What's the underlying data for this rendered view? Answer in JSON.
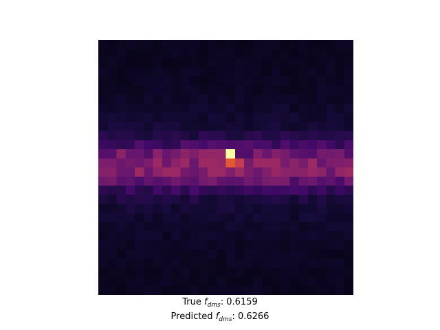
{
  "caption": {
    "true_prefix": "True ",
    "true_var": "f",
    "true_sub": "dms",
    "true_sep": ": ",
    "true_value": "0.6159",
    "pred_prefix": "Predicted ",
    "pred_var": "f",
    "pred_sub": "dms",
    "pred_sep": ": ",
    "pred_value": "0.6266"
  },
  "image": {
    "colormap": "inferno",
    "grid": [
      28,
      28
    ]
  }
}
